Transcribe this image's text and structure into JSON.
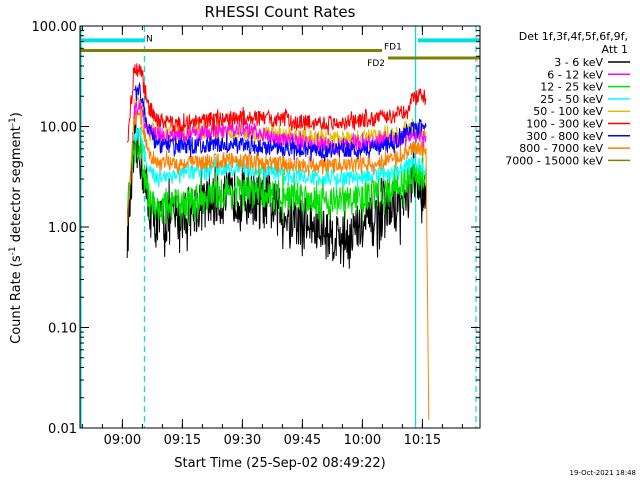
{
  "chart_data": {
    "type": "line",
    "title": "RHESSI Count Rates",
    "xlabel": "Start Time (25-Sep-02 08:49:22)",
    "ylabel_main": "Count Rate (s",
    "ylabel_sup1": "-1",
    "ylabel_mid": " detector segment",
    "ylabel_sup2": "-1",
    "ylabel_end": ")",
    "y_scale": "log",
    "ylim": [
      0.01,
      100
    ],
    "xlim_minutes": [
      0,
      100
    ],
    "x_ticks": [
      {
        "label": "09:00",
        "minute": 10.6
      },
      {
        "label": "09:15",
        "minute": 25.6
      },
      {
        "label": "09:30",
        "minute": 40.6
      },
      {
        "label": "09:45",
        "minute": 55.6
      },
      {
        "label": "10:00",
        "minute": 70.6
      },
      {
        "label": "10:15",
        "minute": 85.6
      }
    ],
    "y_ticks": [
      {
        "label": "100.00",
        "value": 100
      },
      {
        "label": "10.00",
        "value": 10
      },
      {
        "label": "1.00",
        "value": 1
      },
      {
        "label": "0.10",
        "value": 0.1
      },
      {
        "label": "0.01",
        "value": 0.01
      }
    ],
    "legend": {
      "header_line1": "Det 1f,3f,4f,5f,6f,9f,",
      "header_line2": "Att 1",
      "entries": [
        {
          "label": "3 - 6 keV",
          "color": "#000000"
        },
        {
          "label": "6 - 12 keV",
          "color": "#ff00ff"
        },
        {
          "label": "12 - 25 keV",
          "color": "#00e000"
        },
        {
          "label": "25 - 50 keV",
          "color": "#00ffff"
        },
        {
          "label": "50 - 100 keV",
          "color": "#e0c000"
        },
        {
          "label": "100 - 300 keV",
          "color": "#ff0000"
        },
        {
          "label": "300 - 800 keV",
          "color": "#0000ff"
        },
        {
          "label": "800 - 7000 keV",
          "color": "#ff8000"
        },
        {
          "label": "7000 - 15000 keV",
          "color": "#808000"
        }
      ]
    },
    "series": [
      {
        "name": "3 - 6 keV",
        "color": "#000000",
        "noise": 0.75,
        "points": [
          [
            11.8,
            0.8
          ],
          [
            13.5,
            5
          ],
          [
            15,
            5.5
          ],
          [
            17,
            1.6
          ],
          [
            19,
            1.1
          ],
          [
            23,
            1.2
          ],
          [
            28,
            1.5
          ],
          [
            32,
            1.7
          ],
          [
            37,
            2
          ],
          [
            42,
            2
          ],
          [
            47,
            1.7
          ],
          [
            52,
            1.3
          ],
          [
            57,
            1.05
          ],
          [
            62,
            0.85
          ],
          [
            66,
            0.8
          ],
          [
            70,
            0.95
          ],
          [
            75,
            1.3
          ],
          [
            79,
            1.6
          ],
          [
            81.5,
            1.8
          ],
          [
            83,
            2.5
          ],
          [
            85,
            2.5
          ],
          [
            86.5,
            2.6
          ]
        ]
      },
      {
        "name": "6 - 12 keV",
        "color": "#ff00ff",
        "points": [
          [
            13.5,
            14
          ],
          [
            15,
            16
          ],
          [
            17,
            9
          ],
          [
            21,
            8
          ],
          [
            28,
            8.5
          ],
          [
            35,
            9
          ],
          [
            40,
            9.5
          ],
          [
            45,
            8.5
          ],
          [
            50,
            7.5
          ],
          [
            55,
            7
          ],
          [
            60,
            6.8
          ],
          [
            65,
            6.5
          ],
          [
            70,
            6.8
          ],
          [
            75,
            7
          ],
          [
            80,
            7.5
          ],
          [
            82,
            8.5
          ],
          [
            85,
            8
          ],
          [
            86.5,
            8
          ]
        ]
      },
      {
        "name": "12 - 25 keV",
        "color": "#00e000",
        "noise": 0.45,
        "points": [
          [
            11.8,
            1.5
          ],
          [
            13.5,
            6
          ],
          [
            15,
            7
          ],
          [
            17,
            2.2
          ],
          [
            19,
            1.5
          ],
          [
            25,
            1.7
          ],
          [
            32,
            2
          ],
          [
            38,
            2.3
          ],
          [
            45,
            2.2
          ],
          [
            50,
            2.1
          ],
          [
            55,
            2
          ],
          [
            60,
            1.9
          ],
          [
            65,
            1.8
          ],
          [
            70,
            1.9
          ],
          [
            75,
            2.2
          ],
          [
            80,
            2.6
          ],
          [
            82,
            3
          ],
          [
            85,
            3.2
          ],
          [
            86.5,
            3.3
          ]
        ]
      },
      {
        "name": "25 - 50 keV",
        "color": "#00ffff",
        "points": [
          [
            13.5,
            8
          ],
          [
            15,
            9
          ],
          [
            17,
            3.5
          ],
          [
            19,
            3.2
          ],
          [
            25,
            3.3
          ],
          [
            32,
            3.8
          ],
          [
            38,
            4
          ],
          [
            45,
            3.7
          ],
          [
            52,
            3.3
          ],
          [
            58,
            3.1
          ],
          [
            64,
            3
          ],
          [
            70,
            3.1
          ],
          [
            76,
            3.3
          ],
          [
            80,
            3.6
          ],
          [
            82,
            4.2
          ],
          [
            85,
            4
          ],
          [
            86.5,
            4
          ]
        ]
      },
      {
        "name": "50 - 100 keV",
        "color": "#e0c000",
        "points": [
          [
            13.5,
            16
          ],
          [
            15,
            18
          ],
          [
            17,
            9.5
          ],
          [
            22,
            8.5
          ],
          [
            30,
            8.7
          ],
          [
            38,
            9
          ],
          [
            45,
            8.5
          ],
          [
            52,
            8
          ],
          [
            58,
            7.8
          ],
          [
            64,
            7.6
          ],
          [
            70,
            7.8
          ],
          [
            76,
            8
          ],
          [
            80,
            8.5
          ],
          [
            82,
            9.5
          ],
          [
            85,
            9
          ],
          [
            86.5,
            9
          ]
        ]
      },
      {
        "name": "100 - 300 keV",
        "color": "#ff0000",
        "points": [
          [
            11.8,
            7
          ],
          [
            13.5,
            35
          ],
          [
            15,
            38
          ],
          [
            17,
            16
          ],
          [
            20,
            11
          ],
          [
            25,
            10.5
          ],
          [
            30,
            11.2
          ],
          [
            36,
            12
          ],
          [
            42,
            12.2
          ],
          [
            47,
            12
          ],
          [
            52,
            11.5
          ],
          [
            57,
            11
          ],
          [
            63,
            10.8
          ],
          [
            68,
            11
          ],
          [
            74,
            12
          ],
          [
            79,
            13
          ],
          [
            81.5,
            14.5
          ],
          [
            83,
            19
          ],
          [
            85,
            20
          ],
          [
            86.5,
            19
          ]
        ]
      },
      {
        "name": "300 - 800 keV",
        "color": "#0000ff",
        "points": [
          [
            13.5,
            22
          ],
          [
            15,
            23
          ],
          [
            17,
            10
          ],
          [
            19,
            6.5
          ],
          [
            25,
            6.3
          ],
          [
            32,
            6.5
          ],
          [
            38,
            6.6
          ],
          [
            45,
            6.3
          ],
          [
            52,
            6
          ],
          [
            58,
            5.8
          ],
          [
            64,
            5.8
          ],
          [
            70,
            6
          ],
          [
            76,
            6.5
          ],
          [
            80,
            7.5
          ],
          [
            82,
            9
          ],
          [
            85,
            10
          ],
          [
            86.5,
            10
          ]
        ]
      },
      {
        "name": "800 - 7000 keV",
        "color": "#ff8000",
        "points": [
          [
            11.8,
            1
          ],
          [
            13.5,
            12
          ],
          [
            15,
            13
          ],
          [
            17,
            5.8
          ],
          [
            19,
            4.4
          ],
          [
            25,
            4.3
          ],
          [
            32,
            4.5
          ],
          [
            38,
            4.6
          ],
          [
            45,
            4.4
          ],
          [
            52,
            4.2
          ],
          [
            58,
            4.1
          ],
          [
            64,
            4.1
          ],
          [
            70,
            4.2
          ],
          [
            76,
            4.5
          ],
          [
            80,
            5
          ],
          [
            82,
            5.8
          ],
          [
            85,
            6
          ],
          [
            86.5,
            6.2
          ],
          [
            87.2,
            0.012
          ]
        ]
      }
    ],
    "attenuator_lines": [
      {
        "label": "FD1",
        "color": "#808000",
        "value": 57,
        "x_start": 0,
        "x_end": 75.5
      },
      {
        "label": "FD2",
        "color": "#808000",
        "value": 48,
        "x_start": 77,
        "x_end": 100
      }
    ],
    "night_bars": [
      {
        "label": "N",
        "color": "#00e0e0",
        "value": 72,
        "x_start": 0,
        "x_end": 16
      },
      {
        "label": "",
        "color": "#00e0e0",
        "value": 72,
        "x_start": 84.5,
        "x_end": 100
      }
    ],
    "night_boundaries": [
      {
        "minute": 0,
        "style": "solid",
        "color": "#00e0e0"
      },
      {
        "minute": 16.1,
        "style": "dashed",
        "color": "#00e0e0"
      },
      {
        "minute": 83.9,
        "style": "solid",
        "color": "#00e0e0"
      },
      {
        "minute": 99,
        "style": "dashed",
        "color": "#00e0e0"
      }
    ],
    "timestamp": "19-Oct-2021 18:48"
  }
}
